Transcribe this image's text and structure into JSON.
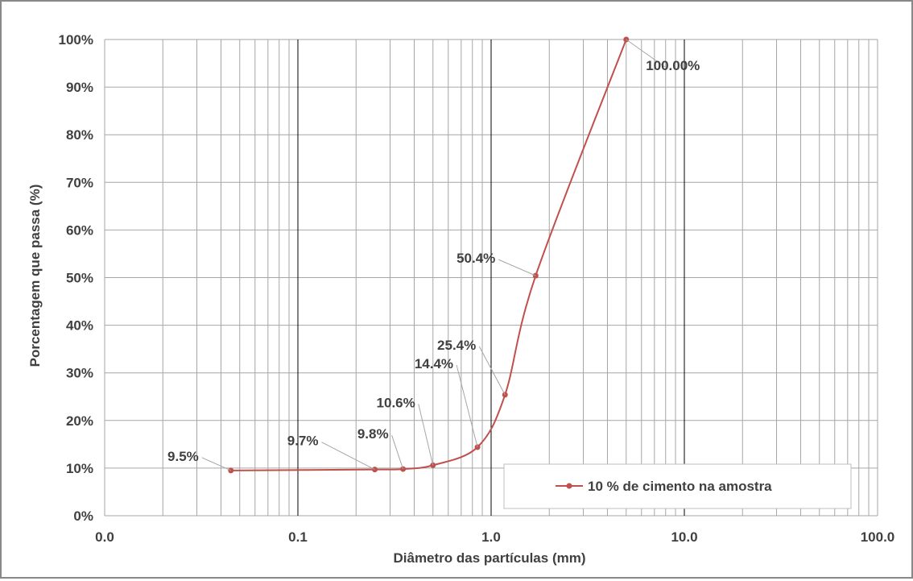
{
  "chart_data": {
    "type": "line",
    "x_scale": "log",
    "xlim": [
      0.01,
      100
    ],
    "ylim": [
      0,
      100
    ],
    "x_tick_labels": [
      "0.0",
      "0.1",
      "1.0",
      "10.0",
      "100.0"
    ],
    "y_tick_labels": [
      "0%",
      "10%",
      "20%",
      "30%",
      "40%",
      "50%",
      "60%",
      "70%",
      "80%",
      "90%",
      "100%"
    ],
    "xlabel": "Diâmetro das partículas (mm)",
    "ylabel": "Porcentagem que passa (%)",
    "grid": true,
    "legend_position": "bottom-right",
    "series": [
      {
        "name": "10 % de cimento na amostra",
        "color": "#c0504d",
        "x": [
          0.045,
          0.25,
          0.35,
          0.5,
          0.85,
          1.18,
          1.7,
          5.0
        ],
        "y": [
          9.5,
          9.7,
          9.8,
          10.6,
          14.4,
          25.4,
          50.4,
          100.0
        ],
        "data_labels": [
          "9.5%",
          "9.7%",
          "9.8%",
          "10.6%",
          "14.4%",
          "25.4%",
          "50.4%",
          "100.00%"
        ]
      }
    ]
  }
}
